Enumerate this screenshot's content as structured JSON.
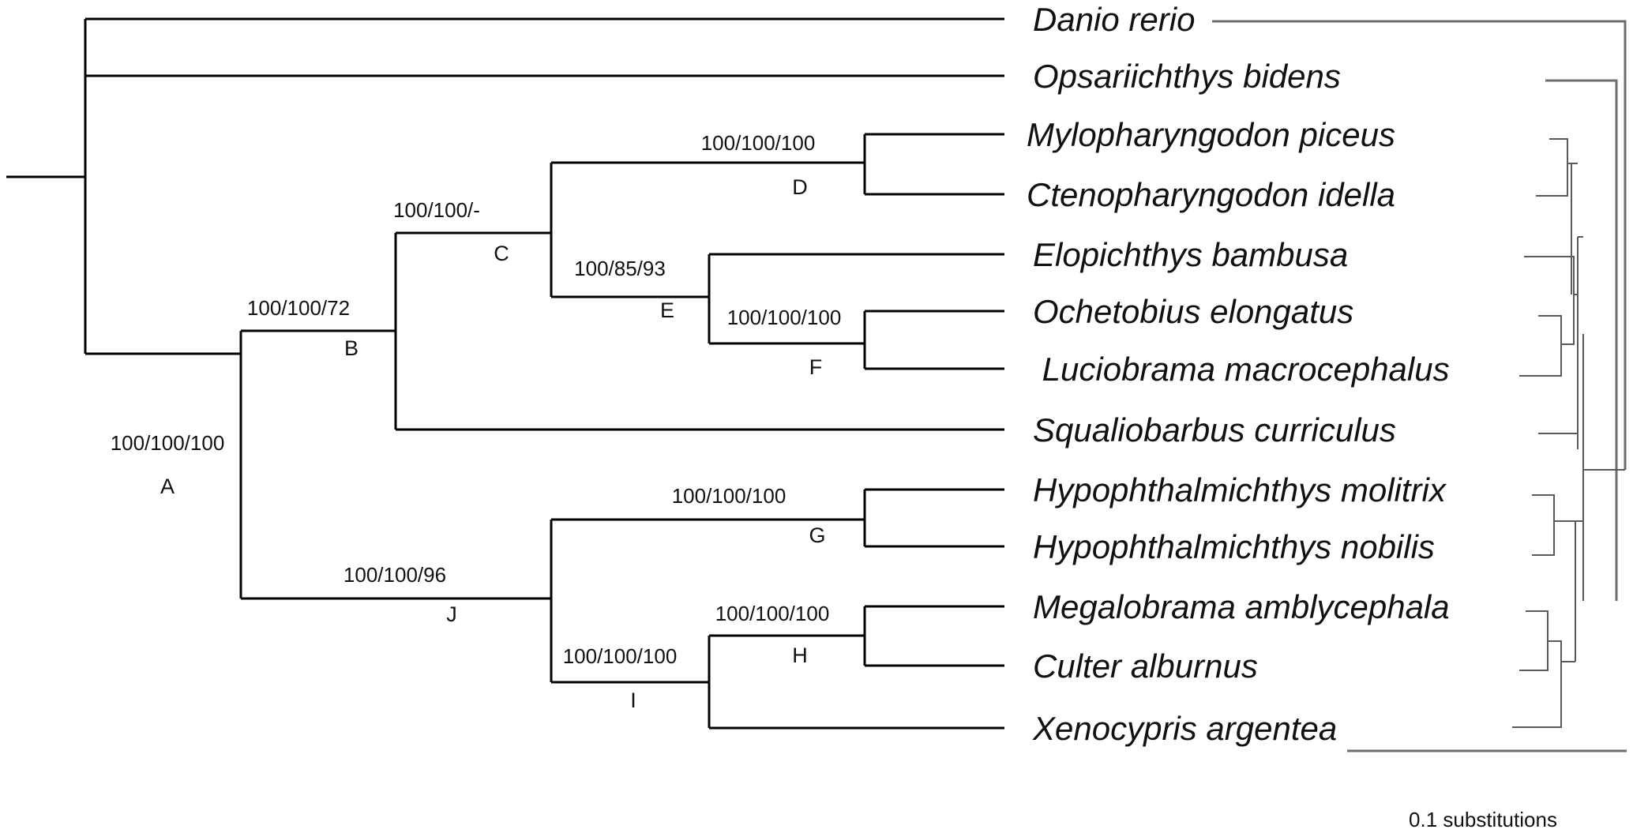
{
  "taxa": [
    "Danio rerio",
    "Opsariichthys bidens",
    "Mylopharyngodon piceus",
    "Ctenopharyngodon idella",
    "Elopichthys bambusa",
    "Ochetobius elongatus",
    " Luciobrama macrocephalus",
    "Squaliobarbus curriculus",
    "Hypophthalmichthys molitrix",
    "Hypophthalmichthys nobilis",
    "Megalobrama amblycephala",
    "Culter alburnus",
    "Xenocypris argentea"
  ],
  "nodes": [
    {
      "letter": "A",
      "support": "100/100/100"
    },
    {
      "letter": "B",
      "support": "100/100/72"
    },
    {
      "letter": "C",
      "support": "100/100/-"
    },
    {
      "letter": "D",
      "support": "100/100/100"
    },
    {
      "letter": "E",
      "support": "100/85/93"
    },
    {
      "letter": "F",
      "support": "100/100/100"
    },
    {
      "letter": "G",
      "support": "100/100/100"
    },
    {
      "letter": "H",
      "support": "100/100/100"
    },
    {
      "letter": "I",
      "support": "100/100/100"
    },
    {
      "letter": "J",
      "support": "100/100/96"
    }
  ],
  "scale_bar": {
    "label": "0.1 substitutions"
  },
  "colors": {
    "cladogram": "#000000",
    "phylogram": "#5a5a5a",
    "text": "#111111",
    "background": "#ffffff"
  }
}
